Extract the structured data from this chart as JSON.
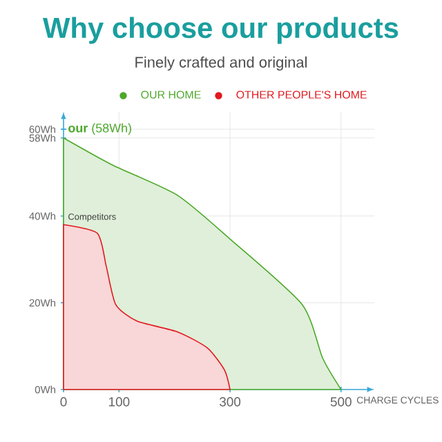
{
  "chart_data": {
    "type": "area",
    "title": "Why choose our products",
    "subtitle": "Finely crafted and original",
    "xlabel": "CHARGE CYCLES",
    "series": [
      {
        "name": "OUR HOME",
        "color": "#4ca82a",
        "x": [
          0,
          89,
          205,
          300,
          430,
          467,
          500
        ],
        "values": [
          58,
          51.7,
          44.8,
          34.7,
          19.6,
          7.2,
          0
        ]
      },
      {
        "name": "OTHER PEOPLE'S HOME",
        "color": "#e0191e",
        "x": [
          0,
          61,
          77,
          94,
          132,
          205,
          259,
          290,
          300
        ],
        "values": [
          38,
          36,
          28.4,
          19.6,
          15.8,
          13.3,
          9.6,
          4.5,
          0
        ]
      }
    ],
    "annotations": [
      {
        "text": "**our** (58Wh)",
        "x": 0,
        "y": 58
      },
      {
        "text": "Competitors",
        "x": 0,
        "y": 38
      }
    ],
    "xlim": [
      0,
      560
    ],
    "ylim": [
      0,
      64
    ],
    "xticks": [
      0,
      100,
      300,
      500
    ],
    "yticks": [
      {
        "value": 0,
        "label": "0Wh"
      },
      {
        "value": 20,
        "label": "20Wh"
      },
      {
        "value": 40,
        "label": "40Wh"
      },
      {
        "value": 58,
        "label": "58Wh"
      },
      {
        "value": 60,
        "label": "60Wh"
      }
    ],
    "grid": true,
    "legend": "top right",
    "marker": "none"
  }
}
